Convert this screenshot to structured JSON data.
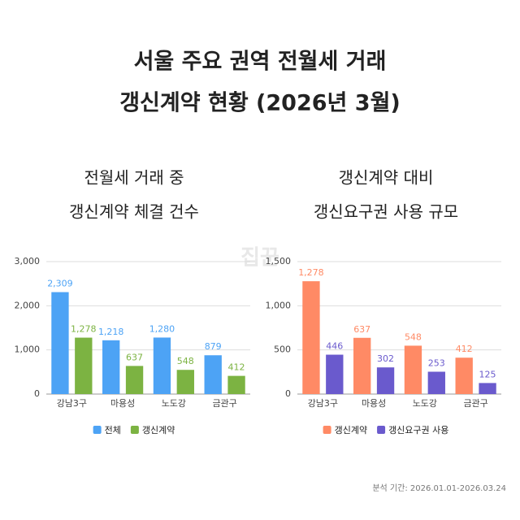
{
  "title": [
    "서울 주요 권역 전월세 거래",
    "갱신계약 현황 (2026년 3월)"
  ],
  "watermark": "집꾼",
  "footnote": "분석 기간: 2026.01.01-2026.03.24",
  "chart_data": [
    {
      "type": "bar",
      "title": [
        "전월세 거래 중",
        "갱신계약 체결 건수"
      ],
      "categories": [
        "강남3구",
        "마용성",
        "노도강",
        "금관구"
      ],
      "series": [
        {
          "name": "전체",
          "color": "#4da3f5",
          "values": [
            2309,
            1218,
            1280,
            879
          ],
          "value_labels": [
            "2,309",
            "1,218",
            "1,280",
            "879"
          ]
        },
        {
          "name": "갱신계약",
          "color": "#7cb342",
          "values": [
            1278,
            637,
            548,
            412
          ],
          "value_labels": [
            "1,278",
            "637",
            "548",
            "412"
          ]
        }
      ],
      "ylim": [
        0,
        3000
      ],
      "yticks": [
        0,
        {
          "value": 1000,
          "label": "1,000"
        },
        {
          "value": 2000,
          "label": "2,000"
        },
        {
          "value": 3000,
          "label": "3,000"
        }
      ],
      "grid": true,
      "legend": "bottom"
    },
    {
      "type": "bar",
      "title": [
        "갱신계약 대비",
        "갱신요구권 사용 규모"
      ],
      "categories": [
        "강남3구",
        "마용성",
        "노도강",
        "금관구"
      ],
      "series": [
        {
          "name": "갱신계약",
          "color": "#ff8a65",
          "values": [
            1278,
            637,
            548,
            412
          ],
          "value_labels": [
            "1,278",
            "637",
            "548",
            "412"
          ]
        },
        {
          "name": "갱신요구권 사용",
          "color": "#6a5acd",
          "values": [
            446,
            302,
            253,
            125
          ]
        }
      ],
      "ylim": [
        0,
        1500
      ],
      "yticks": [
        0,
        500,
        {
          "value": 1000,
          "label": "1,000"
        },
        {
          "value": 1500,
          "label": "1,500"
        }
      ],
      "grid": true,
      "legend": "bottom"
    }
  ]
}
